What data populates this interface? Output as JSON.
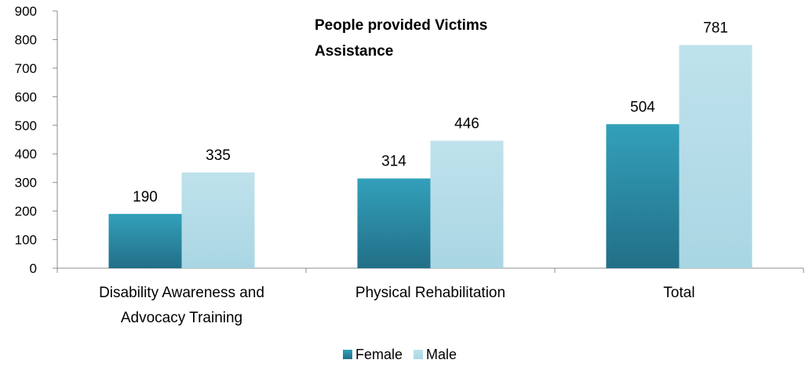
{
  "chart_data": {
    "type": "bar",
    "title_lines": [
      "People provided Victims",
      "Assistance"
    ],
    "categories": [
      [
        "Disability Awareness and",
        "Advocacy Training"
      ],
      [
        "Physical Rehabilitation"
      ],
      [
        "Total"
      ]
    ],
    "series": [
      {
        "name": "Female",
        "values": [
          190,
          314,
          504
        ],
        "color": "#2e8faa"
      },
      {
        "name": "Male",
        "values": [
          335,
          446,
          781
        ],
        "color": "#b7dde8"
      }
    ],
    "yticks": [
      "0",
      "100",
      "200",
      "300",
      "400",
      "500",
      "600",
      "700",
      "800",
      "900"
    ],
    "ylim": [
      0,
      900
    ],
    "grid": false,
    "legend_position": "bottom"
  }
}
